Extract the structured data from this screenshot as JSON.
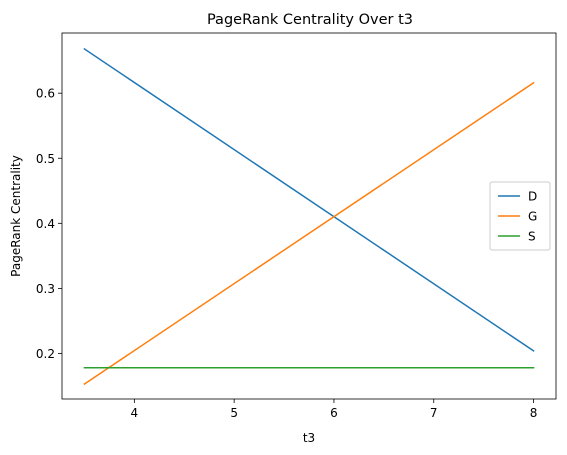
{
  "chart_data": {
    "type": "line",
    "title": "PageRank Centrality Over t3",
    "xlabel": "t3",
    "ylabel": "PageRank Centrality",
    "xlim": [
      3.275,
      8.225
    ],
    "ylim": [
      0.13,
      0.6925
    ],
    "x_ticks": [
      4,
      5,
      6,
      7,
      8
    ],
    "x_tick_labels": [
      "4",
      "5",
      "6",
      "7",
      "8"
    ],
    "y_ticks": [
      0.2,
      0.3,
      0.4,
      0.5,
      0.6
    ],
    "y_tick_labels": [
      "0.2",
      "0.3",
      "0.4",
      "0.5",
      "0.6"
    ],
    "grid": false,
    "legend_position": "center-right",
    "series": [
      {
        "name": "D",
        "color": "#1f77b4",
        "x": [
          3.5,
          8
        ],
        "y": [
          0.668,
          0.204
        ]
      },
      {
        "name": "G",
        "color": "#ff7f0e",
        "x": [
          3.5,
          8
        ],
        "y": [
          0.153,
          0.616
        ]
      },
      {
        "name": "S",
        "color": "#2ca02c",
        "x": [
          3.5,
          8
        ],
        "y": [
          0.178,
          0.178
        ]
      }
    ]
  }
}
